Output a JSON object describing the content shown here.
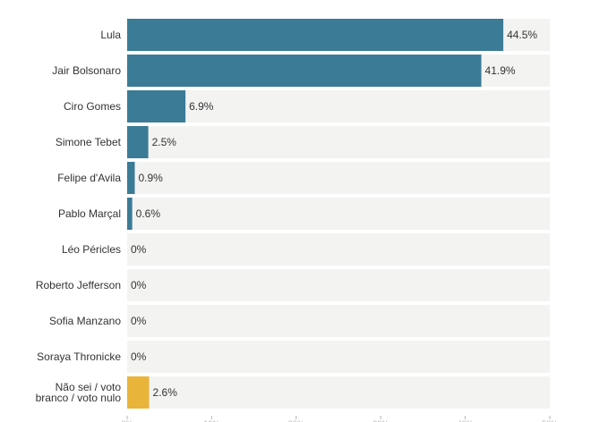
{
  "chart_data": {
    "type": "bar",
    "orientation": "horizontal",
    "categories": [
      "Lula",
      "Jair Bolsonaro",
      "Ciro Gomes",
      "Simone Tebet",
      "Felipe d'Avila",
      "Pablo Marçal",
      "Léo Péricles",
      "Roberto Jefferson",
      "Sofia Manzano",
      "Soraya Thronicke",
      "Não sei / voto branco / voto nulo"
    ],
    "values": [
      44.5,
      41.9,
      6.9,
      2.5,
      0.9,
      0.6,
      0,
      0,
      0,
      0,
      2.6
    ],
    "value_labels": [
      "44.5%",
      "41.9%",
      "6.9%",
      "2.5%",
      "0.9%",
      "0.6%",
      "0%",
      "0%",
      "0%",
      "0%",
      "2.6%"
    ],
    "xlim": [
      0,
      50
    ],
    "x_ticks": [
      0,
      10,
      20,
      30,
      40,
      50
    ],
    "grid": false,
    "colors": {
      "bar": "#3b7b96",
      "highlight": "#e9b43a",
      "track": "#f3f3f1",
      "label": "#333333",
      "tick": "#b5b5b5"
    },
    "highlight_categories": [
      "Não sei / voto branco / voto nulo"
    ]
  }
}
